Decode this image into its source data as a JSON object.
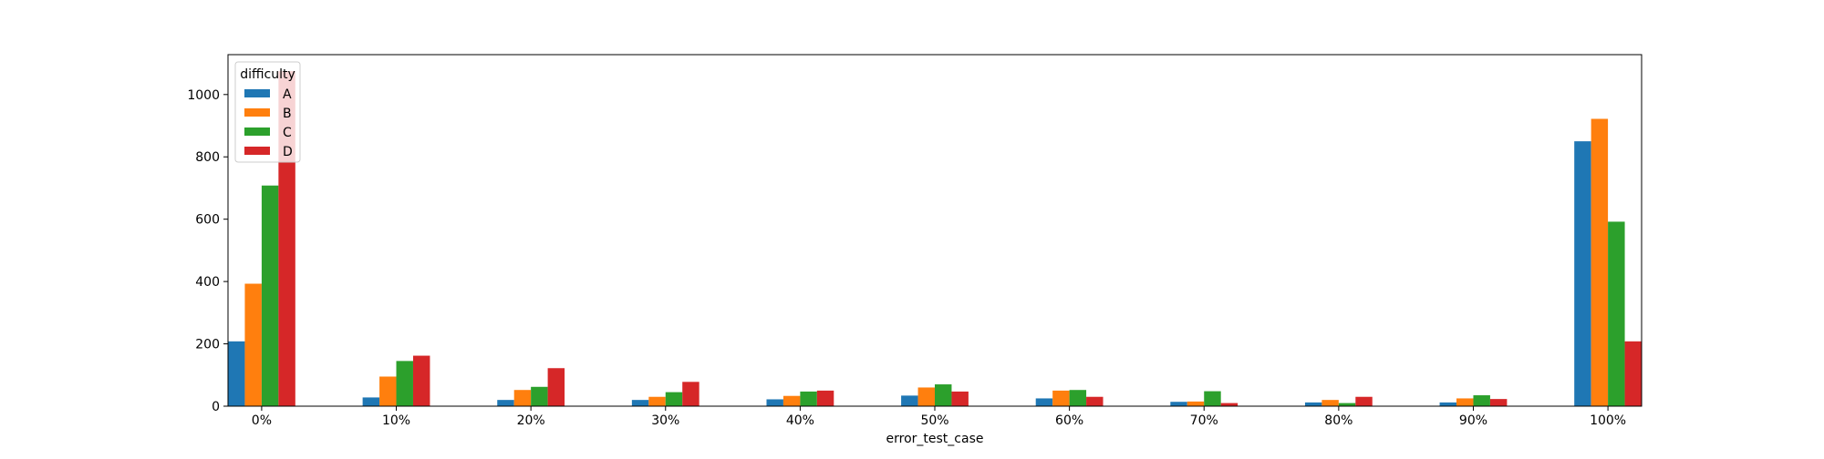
{
  "chart_data": {
    "type": "bar",
    "categories": [
      "0%",
      "10%",
      "20%",
      "30%",
      "40%",
      "50%",
      "60%",
      "70%",
      "80%",
      "90%",
      "100%"
    ],
    "series": [
      {
        "name": "A",
        "color": "#1f77b4",
        "values": [
          208,
          28,
          20,
          20,
          22,
          34,
          25,
          14,
          12,
          12,
          850
        ]
      },
      {
        "name": "B",
        "color": "#ff7f0e",
        "values": [
          393,
          95,
          52,
          30,
          33,
          60,
          50,
          15,
          20,
          25,
          922
        ]
      },
      {
        "name": "C",
        "color": "#2ca02c",
        "values": [
          708,
          145,
          62,
          45,
          47,
          70,
          52,
          48,
          10,
          35,
          592
        ]
      },
      {
        "name": "D",
        "color": "#d62728",
        "values": [
          1075,
          162,
          122,
          78,
          50,
          47,
          30,
          10,
          30,
          23,
          208
        ]
      }
    ],
    "title": "",
    "xlabel": "error_test_case",
    "ylabel": "",
    "ylim": [
      0,
      1128
    ],
    "yticks": [
      0,
      200,
      400,
      600,
      800,
      1000
    ],
    "legend": {
      "title": "difficulty",
      "placement": "top-left"
    },
    "grid": false
  }
}
